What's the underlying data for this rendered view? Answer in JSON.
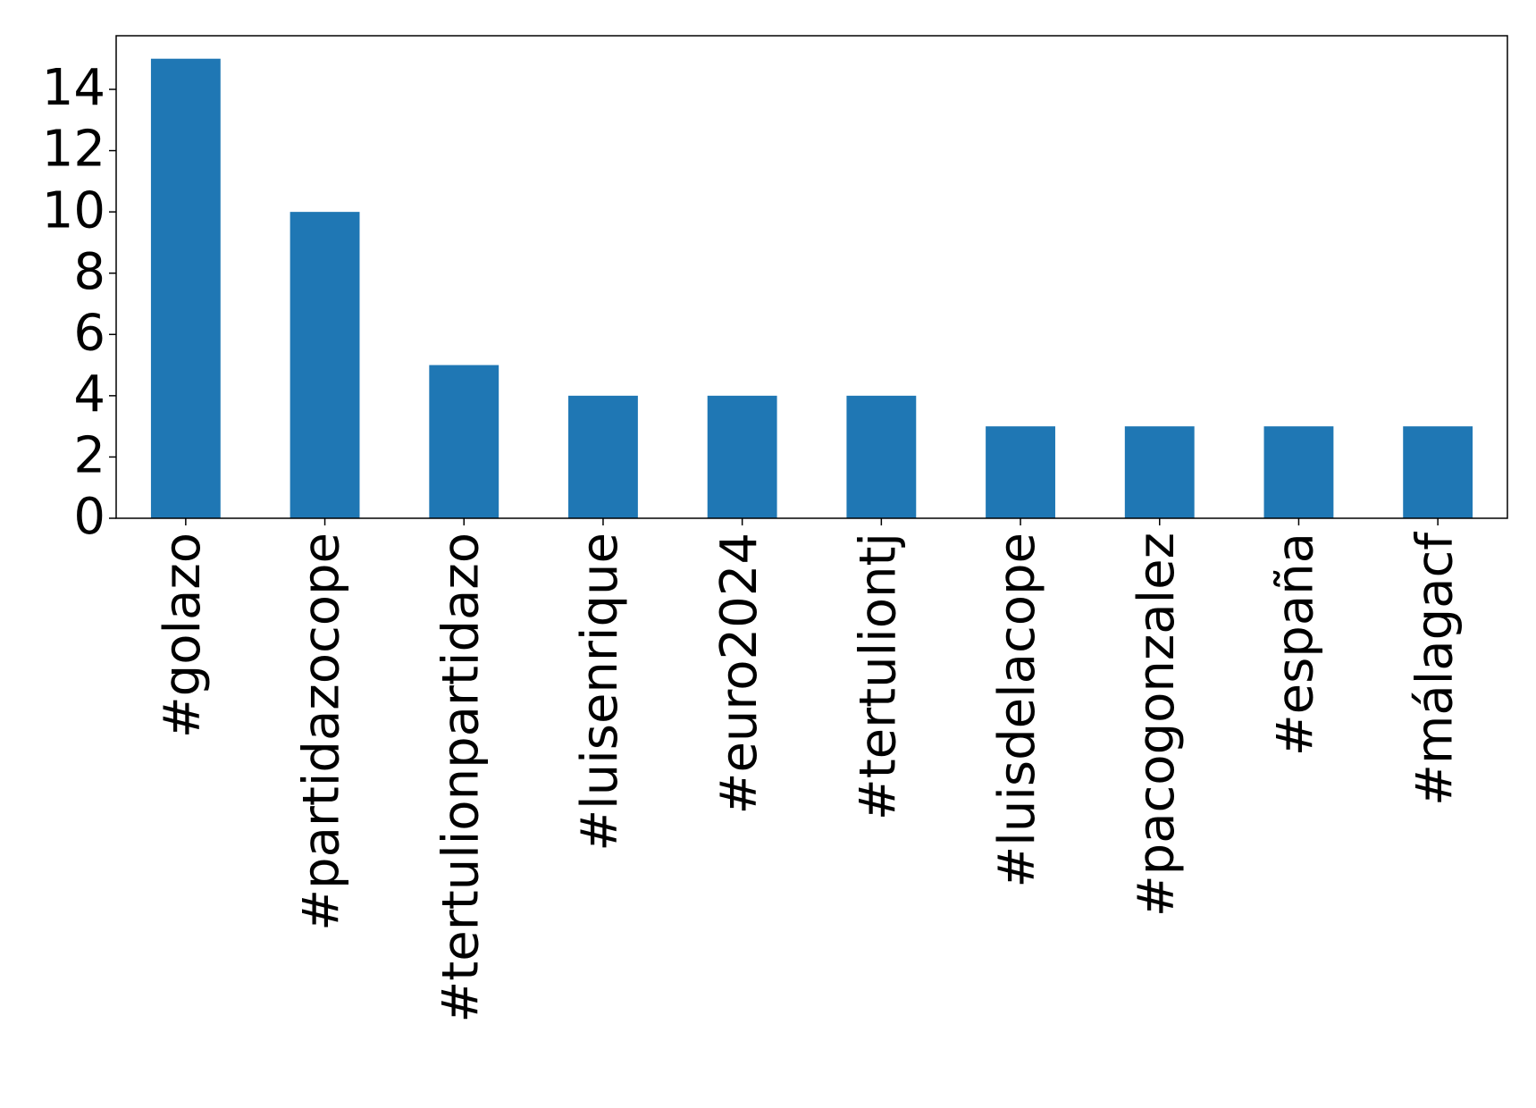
{
  "chart_data": {
    "type": "bar",
    "categories": [
      "#golazo",
      "#partidazocope",
      "#tertulionpartidazo",
      "#luisenrique",
      "#euro2024",
      "#tertuliontj",
      "#luisdelacope",
      "#pacogonzalez",
      "#españa",
      "#málagacf"
    ],
    "values": [
      15,
      10,
      5,
      4,
      4,
      4,
      3,
      3,
      3,
      3
    ],
    "color": "#1f77b4",
    "ylim": [
      0,
      15.75
    ],
    "yticks": [
      0,
      2,
      4,
      6,
      8,
      10,
      12,
      14
    ],
    "grid": false
  }
}
